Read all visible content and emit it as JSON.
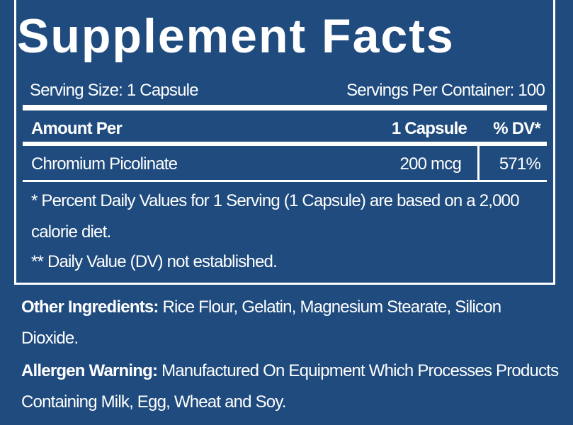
{
  "title": "Supplement Facts",
  "serving_size": "Serving Size: 1 Capsule",
  "servings_per_container": "Servings Per Container: 100",
  "table": {
    "header": [
      "Amount Per",
      "1 Capsule",
      "% DV*"
    ],
    "rows": [
      [
        "Chromium Picolinate",
        "200 mcg",
        "571%"
      ]
    ]
  },
  "footnotes": [
    "* Percent Daily Values for 1 Serving (1 Capsule) are based on a 2,000 calorie diet.",
    "** Daily Value (DV) not established."
  ],
  "other_ingredients": {
    "label": "Other Ingredients:",
    "text": "Rice Flour, Gelatin, Magnesium Stearate, Silicon Dioxide."
  },
  "allergen_warning": {
    "label": "Allergen Warning:",
    "text": "Manufactured On Equipment Which Processes Products Containing Milk, Egg, Wheat and Soy."
  }
}
